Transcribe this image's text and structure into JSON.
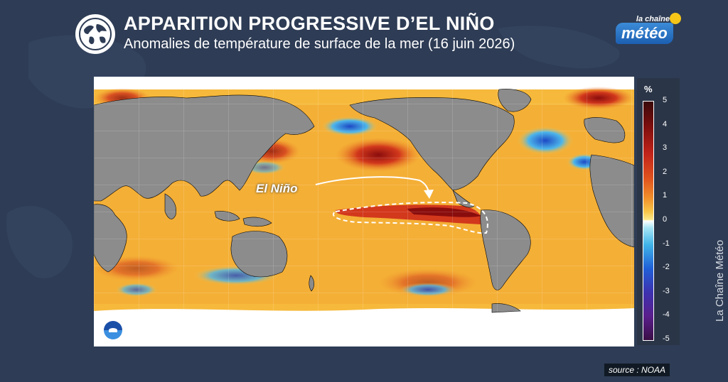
{
  "header": {
    "title": "APPARITION PROGRESSIVE D’EL NIÑO",
    "subtitle": "Anomalies de température de surface de la mer (16 juin 2026)",
    "icon": "globe-icon"
  },
  "logo": {
    "small_text": "la chaîne",
    "main_text": "météo",
    "brand_colors": {
      "blue": "#1c5fb2",
      "sun": "#f5c518"
    }
  },
  "map": {
    "annotation_label": "El Niño",
    "land_color": "#8c8c8c",
    "ice_color": "#ffffff",
    "warm_color": "#f08c2a",
    "hot_color": "#c3241a",
    "cold_color": "#2060d8"
  },
  "legend": {
    "unit": "%",
    "ticks": [
      "5",
      "4",
      "3",
      "2",
      "1",
      "0",
      "-1",
      "-2",
      "-3",
      "-4",
      "-5"
    ]
  },
  "footer": {
    "source": "source : NOAA",
    "credit": "La Chaîne Météo",
    "noaa_logo": "noaa-logo-icon"
  }
}
